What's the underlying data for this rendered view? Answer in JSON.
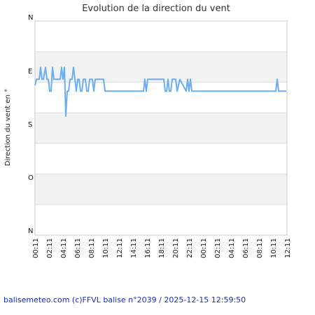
{
  "chart_data": {
    "type": "line",
    "title": "Evolution de la direction du vent",
    "ylabel": "Direction du vent en °",
    "xlabel": "",
    "yticks": [
      {
        "label": "N",
        "value": 0
      },
      {
        "label": "E",
        "value": 90
      },
      {
        "label": "S",
        "value": 180
      },
      {
        "label": "O",
        "value": 270
      },
      {
        "label": "N",
        "value": 360
      }
    ],
    "ylim": [
      0,
      360
    ],
    "grid": true,
    "xtick_labels": [
      "00:11",
      "02:11",
      "04:11",
      "06:11",
      "08:11",
      "10:11",
      "12:11",
      "14:11",
      "16:11",
      "18:11",
      "20:11",
      "22:11",
      "00:11",
      "02:11",
      "04:11",
      "06:11",
      "08:11",
      "10:11",
      "12:11"
    ],
    "x_step_hours": 2,
    "series_color": "#6aaef0",
    "series": [
      {
        "x": [
          0,
          0.2,
          0.6,
          0.8,
          1.0,
          1.2,
          1.5,
          1.7,
          1.9,
          2.1,
          2.3,
          2.5,
          2.7,
          3.6,
          3.8,
          4.0,
          4.2,
          4.4,
          4.6,
          4.8,
          5.0,
          5.3,
          5.5,
          5.7,
          5.9,
          6.1,
          6.3,
          6.5,
          6.7,
          6.9,
          7.2,
          7.4,
          7.6,
          7.8,
          8.0,
          8.2,
          8.4,
          8.6,
          9.8,
          10.0,
          10.2,
          10.4,
          15.5,
          15.7,
          15.9,
          16.1,
          18.4,
          18.6,
          18.8,
          19.0,
          19.2,
          19.4,
          19.6,
          19.8,
          20.1,
          20.3,
          20.7,
          21.6,
          21.8,
          22.0,
          22.2,
          22.4,
          22.6,
          22.8,
          23.0,
          34.4,
          34.6,
          34.8,
          35.9
        ],
        "y": [
          108,
          98,
          98,
          78,
          98,
          98,
          78,
          98,
          98,
          118,
          118,
          78,
          98,
          98,
          78,
          98,
          78,
          160,
          118,
          118,
          98,
          98,
          78,
          98,
          118,
          98,
          98,
          118,
          118,
          98,
          98,
          118,
          118,
          98,
          98,
          98,
          118,
          98,
          98,
          118,
          118,
          118,
          118,
          98,
          118,
          98,
          98,
          118,
          118,
          98,
          118,
          118,
          98,
          98,
          98,
          118,
          98,
          118,
          98,
          118,
          98,
          118,
          118,
          118,
          118,
          118,
          98,
          118,
          118
        ]
      }
    ]
  },
  "footer": {
    "credit": "balisemeteo.com (c)FFVL balise n°2039 / 2025-12-15 12:59:50"
  }
}
